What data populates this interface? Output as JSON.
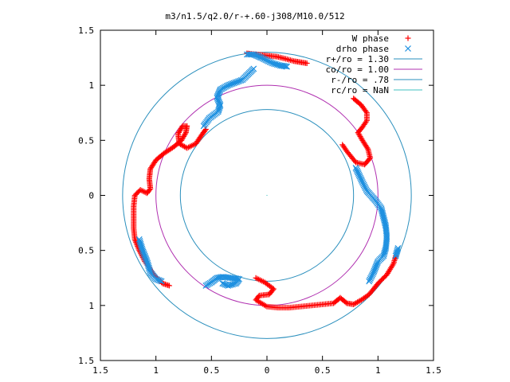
{
  "chart_data": {
    "type": "scatter",
    "title": "m3/n1.5/q2.0/r-+.60-j308/M10.0/512",
    "xlim": [
      -1.5,
      1.5
    ],
    "ylim": [
      -1.5,
      1.5
    ],
    "x_ticks": [
      {
        "value": -1.5,
        "label": "1.5"
      },
      {
        "value": -1,
        "label": "1"
      },
      {
        "value": -0.5,
        "label": "0.5"
      },
      {
        "value": 0,
        "label": "0"
      },
      {
        "value": 0.5,
        "label": "0.5"
      },
      {
        "value": 1,
        "label": "1"
      },
      {
        "value": 1.5,
        "label": "1.5"
      }
    ],
    "y_ticks": [
      {
        "value": 1.5,
        "label": "1.5"
      },
      {
        "value": 1,
        "label": "1"
      },
      {
        "value": 0.5,
        "label": "0.5"
      },
      {
        "value": 0,
        "label": "0"
      },
      {
        "value": -0.5,
        "label": "0.5"
      },
      {
        "value": -1,
        "label": "1"
      },
      {
        "value": -1.5,
        "label": "1.5"
      }
    ],
    "grid": false,
    "legend_position": "top-right",
    "circles": [
      {
        "name": "r+/ro = 1.30",
        "radius": 1.3,
        "color": "#2a8fbd"
      },
      {
        "name": "co/ro = 1.00",
        "radius": 1.0,
        "color": "#b030b0"
      },
      {
        "name": "r-/ro = .78",
        "radius": 0.78,
        "color": "#2a8fbd"
      },
      {
        "name": "rc/ro = NaN",
        "radius": null,
        "color": "#40c0c0"
      }
    ],
    "series": [
      {
        "name": "W phase",
        "marker": "plus",
        "color": "#ff0000",
        "points": [
          [
            -0.18,
            1.29
          ],
          [
            -0.09,
            1.28
          ],
          [
            0,
            1.27
          ],
          [
            0.09,
            1.26
          ],
          [
            0.17,
            1.24
          ],
          [
            0.24,
            1.22
          ],
          [
            0.3,
            1.21
          ],
          [
            0.36,
            1.2
          ],
          [
            0.78,
            0.88
          ],
          [
            0.85,
            0.82
          ],
          [
            0.9,
            0.75
          ],
          [
            0.9,
            0.68
          ],
          [
            0.86,
            0.62
          ],
          [
            0.82,
            0.57
          ],
          [
            0.86,
            0.5
          ],
          [
            0.91,
            0.42
          ],
          [
            0.93,
            0.34
          ],
          [
            0.88,
            0.28
          ],
          [
            0.8,
            0.3
          ],
          [
            0.72,
            0.4
          ],
          [
            0.68,
            0.46
          ],
          [
            -0.88,
            -0.82
          ],
          [
            -0.94,
            -0.8
          ],
          [
            -1.02,
            -0.72
          ],
          [
            -1.1,
            -0.6
          ],
          [
            -1.15,
            -0.5
          ],
          [
            -1.19,
            -0.4
          ],
          [
            -1.2,
            -0.3
          ],
          [
            -1.2,
            -0.2
          ],
          [
            -1.2,
            -0.1
          ],
          [
            -1.19,
            0
          ],
          [
            -1.14,
            0.05
          ],
          [
            -1.08,
            0.02
          ],
          [
            -1.05,
            0.06
          ],
          [
            -1.06,
            0.15
          ],
          [
            -1.05,
            0.24
          ],
          [
            -1.0,
            0.32
          ],
          [
            -0.93,
            0.38
          ],
          [
            -0.84,
            0.44
          ],
          [
            -0.77,
            0.5
          ],
          [
            -0.73,
            0.57
          ],
          [
            -0.72,
            0.63
          ],
          [
            -0.76,
            0.63
          ],
          [
            -0.8,
            0.56
          ],
          [
            -0.79,
            0.47
          ],
          [
            -0.72,
            0.43
          ],
          [
            -0.64,
            0.47
          ],
          [
            -0.58,
            0.56
          ],
          [
            -0.55,
            0.6
          ],
          [
            -0.1,
            -0.75
          ],
          [
            -0.02,
            -0.79
          ],
          [
            0.06,
            -0.85
          ],
          [
            0.02,
            -0.9
          ],
          [
            -0.07,
            -0.91
          ],
          [
            -0.1,
            -0.95
          ],
          [
            0,
            -1.01
          ],
          [
            0.1,
            -1.02
          ],
          [
            0.2,
            -1.02
          ],
          [
            0.3,
            -1.01
          ],
          [
            0.4,
            -1.0
          ],
          [
            0.5,
            -0.99
          ],
          [
            0.6,
            -0.98
          ],
          [
            0.66,
            -0.93
          ],
          [
            0.72,
            -0.98
          ],
          [
            0.78,
            -0.99
          ],
          [
            0.85,
            -0.95
          ],
          [
            0.92,
            -0.9
          ],
          [
            1.0,
            -0.8
          ],
          [
            1.08,
            -0.72
          ],
          [
            1.14,
            -0.62
          ],
          [
            1.16,
            -0.55
          ]
        ]
      },
      {
        "name": "drho phase",
        "marker": "cross",
        "color": "#1e90e0",
        "points": [
          [
            -0.18,
            1.28
          ],
          [
            -0.12,
            1.28
          ],
          [
            -0.05,
            1.25
          ],
          [
            0.05,
            1.2
          ],
          [
            0.12,
            1.18
          ],
          [
            0.18,
            1.17
          ],
          [
            -0.12,
            1.15
          ],
          [
            -0.22,
            1.05
          ],
          [
            -0.35,
            1.0
          ],
          [
            -0.42,
            0.96
          ],
          [
            -0.45,
            0.89
          ],
          [
            -0.42,
            0.82
          ],
          [
            -0.44,
            0.76
          ],
          [
            -0.52,
            0.7
          ],
          [
            -0.57,
            0.63
          ],
          [
            0.8,
            0.25
          ],
          [
            0.86,
            0.12
          ],
          [
            0.9,
            0.04
          ],
          [
            0.98,
            -0.05
          ],
          [
            1.03,
            -0.12
          ],
          [
            1.05,
            -0.2
          ],
          [
            1.07,
            -0.28
          ],
          [
            1.08,
            -0.38
          ],
          [
            1.07,
            -0.48
          ],
          [
            1.05,
            -0.55
          ],
          [
            1.0,
            -0.6
          ],
          [
            0.96,
            -0.7
          ],
          [
            0.92,
            -0.78
          ],
          [
            1.16,
            -0.55
          ],
          [
            1.18,
            -0.48
          ],
          [
            -1.15,
            -0.4
          ],
          [
            -1.12,
            -0.5
          ],
          [
            -1.08,
            -0.6
          ],
          [
            -1.05,
            -0.7
          ],
          [
            -1.0,
            -0.76
          ],
          [
            -0.95,
            -0.78
          ],
          [
            -0.55,
            -0.82
          ],
          [
            -0.5,
            -0.79
          ],
          [
            -0.45,
            -0.75
          ],
          [
            -0.4,
            -0.74
          ],
          [
            -0.32,
            -0.75
          ],
          [
            -0.25,
            -0.76
          ],
          [
            -0.28,
            -0.8
          ],
          [
            -0.35,
            -0.82
          ],
          [
            -0.4,
            -0.8
          ]
        ]
      }
    ]
  }
}
